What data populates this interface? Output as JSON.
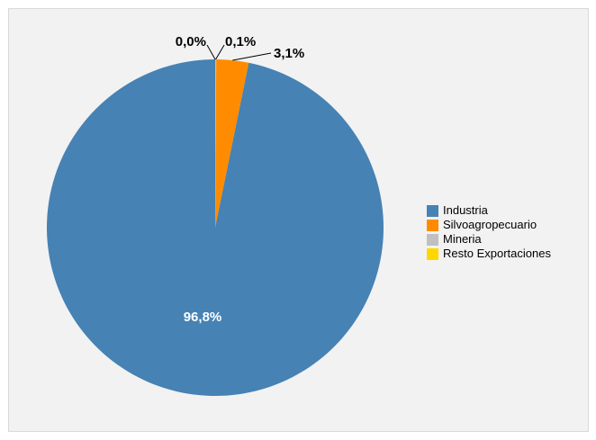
{
  "chart_data": {
    "type": "pie",
    "categories": [
      "Industria",
      "Silvoagropecuario",
      "Mineria",
      "Resto Exportaciones"
    ],
    "values": [
      96.8,
      3.1,
      0.1,
      0.0
    ],
    "data_labels": [
      "96,8%",
      "3,1%",
      "0,1%",
      "0,0%"
    ],
    "colors": [
      "#4682b4",
      "#ff8c00",
      "#c0c0c0",
      "#ffd700"
    ],
    "legend": "right"
  }
}
